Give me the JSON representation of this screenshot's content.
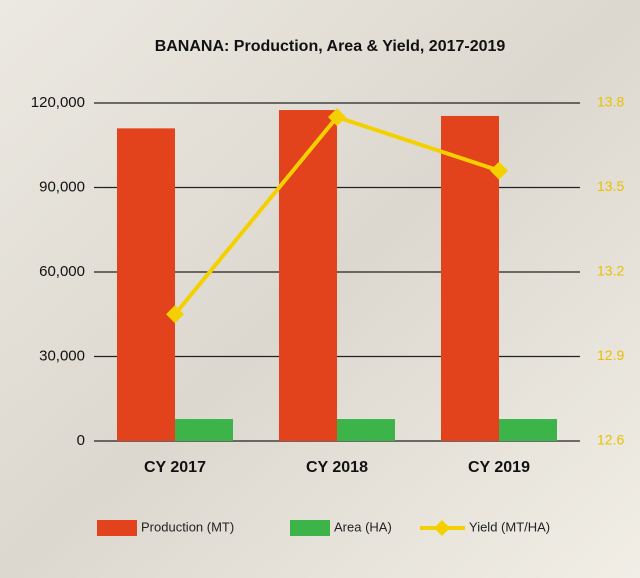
{
  "chart_data": {
    "type": "bar",
    "title": "BANANA: Production, Area & Yield, 2017-2019",
    "categories": [
      "CY 2017",
      "CY 2018",
      "CY 2019"
    ],
    "series": [
      {
        "name": "Production (MT)",
        "type": "bar",
        "color": "#e2421c",
        "values": [
          111000,
          117500,
          115400
        ]
      },
      {
        "name": "Area (HA)",
        "type": "bar",
        "color": "#3cb44a",
        "values": [
          7800,
          7800,
          7800
        ]
      },
      {
        "name": "Yield (MT/HA)",
        "type": "line",
        "axis": "y2",
        "color": "#f5d000",
        "values": [
          13.05,
          13.75,
          13.56
        ]
      }
    ],
    "ylim": [
      0,
      120000
    ],
    "yticks": [
      0,
      {
        "value": 30000,
        "label": "30,000"
      },
      {
        "value": 60000,
        "label": "60,000"
      },
      {
        "value": 90000,
        "label": "90,000"
      },
      {
        "value": 120000,
        "label": "120,000"
      }
    ],
    "y2lim": [
      12.6,
      13.8
    ],
    "y2ticks": [
      12.6,
      12.9,
      13.2,
      13.5,
      13.8
    ],
    "grid": true,
    "legend": "bottom"
  }
}
